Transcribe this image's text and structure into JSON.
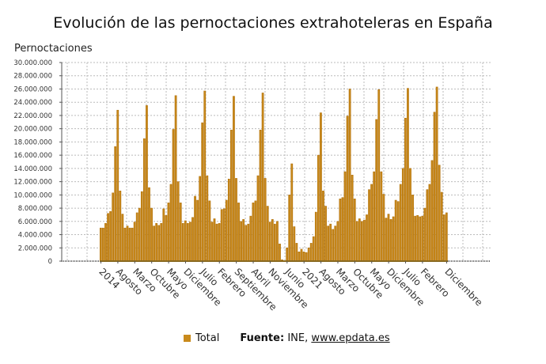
{
  "chart_data": {
    "type": "bar",
    "title": "Evolución de las pernoctaciones extrahoteleras en España",
    "ylabel": "Pernoctaciones",
    "xlabel": "",
    "ylim": [
      0,
      30000000
    ],
    "y_ticks": [
      "0",
      "2.000.000",
      "4.000.000",
      "6.000.000",
      "8.000.000",
      "10.000.000",
      "12.000.000",
      "14.000.000",
      "16.000.000",
      "18.000.000",
      "20.000.000",
      "22.000.000",
      "24.000.000",
      "26.000.000",
      "28.000.000",
      "30.000.000"
    ],
    "x_tick_labels": [
      "2014",
      "Agosto",
      "Marzo",
      "Octubre",
      "Mayo",
      "Diciembre",
      "Julio",
      "Febrero",
      "Septiembre",
      "Abril",
      "Noviembre",
      "Junio",
      "2021",
      "Agosto",
      "Marzo",
      "Octubre",
      "Mayo",
      "Diciembre",
      "Julio",
      "Febrero",
      "Diciembre"
    ],
    "grid": true,
    "legend_position": "bottom",
    "colors": {
      "bar": "#c98a1c",
      "bar_stroke": "#b06f08"
    },
    "series": [
      {
        "name": "Total",
        "start": "2014-01",
        "frequency": "monthly",
        "values_millions": [
          5.0,
          5.0,
          5.7,
          7.2,
          7.5,
          10.3,
          17.3,
          22.8,
          10.6,
          7.1,
          5.0,
          5.3,
          5.0,
          5.0,
          5.9,
          7.3,
          8.0,
          10.5,
          18.5,
          23.5,
          11.1,
          8.0,
          5.3,
          5.7,
          5.4,
          5.7,
          7.9,
          6.9,
          8.8,
          11.6,
          19.9,
          25.0,
          12.0,
          8.8,
          5.7,
          6.1,
          5.7,
          5.9,
          6.6,
          9.8,
          9.2,
          12.8,
          20.9,
          25.7,
          12.9,
          9.1,
          5.9,
          6.4,
          5.6,
          5.7,
          7.8,
          7.9,
          9.2,
          12.4,
          19.8,
          24.9,
          12.5,
          8.8,
          6.0,
          6.3,
          5.4,
          5.6,
          6.8,
          8.8,
          9.1,
          12.9,
          19.8,
          25.4,
          12.5,
          8.3,
          5.9,
          6.3,
          5.6,
          6.0,
          2.6,
          0.2,
          0.0,
          2.0,
          10.0,
          14.7,
          5.2,
          2.7,
          1.4,
          1.8,
          1.4,
          1.3,
          2.0,
          2.7,
          3.7,
          7.4,
          16.0,
          22.4,
          10.6,
          8.3,
          5.3,
          5.6,
          4.8,
          5.3,
          6.0,
          9.4,
          9.6,
          13.5,
          21.9,
          26.0,
          13.0,
          9.4,
          6.0,
          6.4,
          6.0,
          6.2,
          7.0,
          10.8,
          11.6,
          13.5,
          21.4,
          25.9,
          13.5,
          10.1,
          6.5,
          7.1,
          6.3,
          6.7,
          9.2,
          9.0,
          11.6,
          14.0,
          21.6,
          26.1,
          14.0,
          10.0,
          6.8,
          6.9,
          6.7,
          6.8,
          8.0,
          10.8,
          11.6,
          15.2,
          22.5,
          26.3,
          14.5,
          10.4,
          7.0,
          7.3
        ]
      }
    ]
  },
  "legend": {
    "label": "Total"
  },
  "source": {
    "prefix": "Fuente:",
    "text": "INE,",
    "link": "www.epdata.es"
  }
}
